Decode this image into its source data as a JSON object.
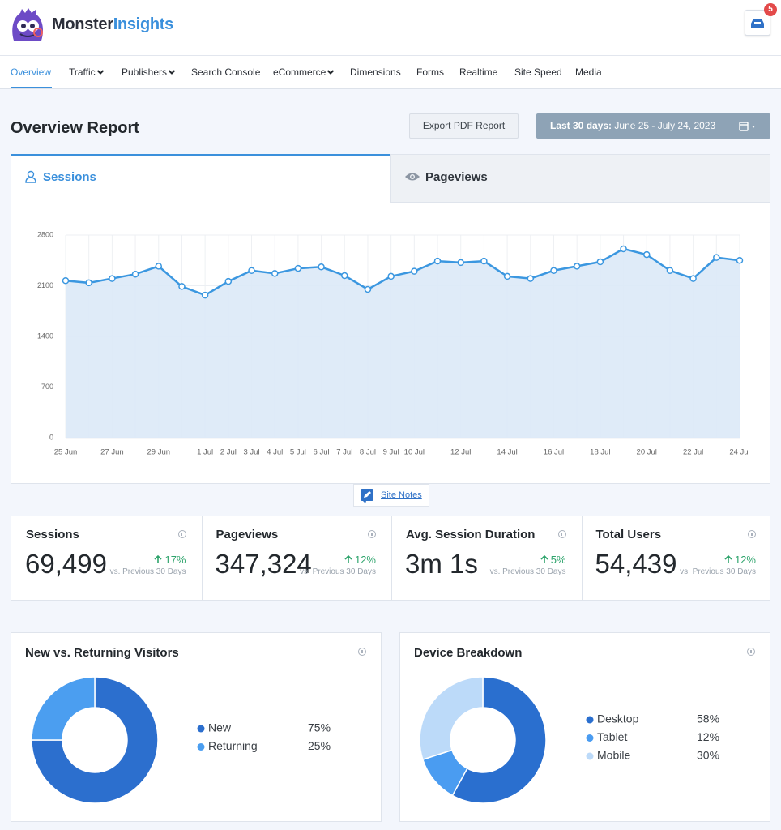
{
  "header": {
    "brand_primary": "Monster",
    "brand_secondary": "Insights",
    "notification_count": "5"
  },
  "nav": {
    "items": [
      "Overview",
      "Traffic",
      "Publishers",
      "Search Console",
      "eCommerce",
      "Dimensions",
      "Forms",
      "Realtime",
      "Site Speed",
      "Media"
    ]
  },
  "report": {
    "title": "Overview Report",
    "export_button": "Export PDF Report",
    "date_range_label": "Last 30 days:",
    "date_range": "June 25 - July 24, 2023"
  },
  "tabs": [
    "Sessions",
    "Pageviews"
  ],
  "site_notes": "Site Notes",
  "metrics": [
    {
      "title": "Sessions",
      "value": "69,499",
      "change": "17%",
      "comparison": "vs. Previous 30 Days"
    },
    {
      "title": "Pageviews",
      "value": "347,324",
      "change": "12%",
      "comparison": "vs. Previous 30 Days"
    },
    {
      "title": "Avg. Session Duration",
      "value": "3m 1s",
      "change": "5%",
      "comparison": "vs. Previous 30 Days"
    },
    {
      "title": "Total Users",
      "value": "54,439",
      "change": "12%",
      "comparison": "vs. Previous 30 Days"
    }
  ],
  "chart_data": [
    {
      "type": "line",
      "color": "#3b97e0",
      "categories": [
        "25 Jun",
        null,
        "27 Jun",
        null,
        "29 Jun",
        null,
        "1 Jul",
        "2 Jul",
        "3 Jul",
        "4 Jul",
        "5 Jul",
        "6 Jul",
        "7 Jul",
        "8 Jul",
        "9 Jul",
        "10 Jul",
        null,
        "12 Jul",
        null,
        "14 Jul",
        null,
        "16 Jul",
        null,
        "18 Jul",
        null,
        "20 Jul",
        null,
        "22 Jul",
        null,
        "24 Jul"
      ],
      "values": [
        2170,
        2140,
        2200,
        2260,
        2370,
        2090,
        1970,
        2160,
        2310,
        2270,
        2340,
        2360,
        2240,
        2050,
        2230,
        2300,
        2440,
        2420,
        2440,
        2230,
        2200,
        2310,
        2370,
        2430,
        2610,
        2530,
        2310,
        2200,
        2490,
        2450
      ],
      "ylim": [
        0,
        2800
      ],
      "yticks": [
        0,
        700,
        1400,
        2100,
        2800
      ],
      "grid": true
    },
    {
      "type": "donut",
      "title": "New vs. Returning Visitors",
      "categories": [
        "New",
        "Returning"
      ],
      "values": [
        75,
        25
      ],
      "value_labels": [
        "75%",
        "25%"
      ],
      "colors": [
        "#2c6fce",
        "#4b9ef0"
      ]
    },
    {
      "type": "donut",
      "title": "Device Breakdown",
      "categories": [
        "Desktop",
        "Tablet",
        "Mobile"
      ],
      "values": [
        58,
        12,
        30
      ],
      "value_labels": [
        "58%",
        "12%",
        "30%"
      ],
      "colors": [
        "#2a6fcf",
        "#4a9cf1",
        "#bcdaf9"
      ]
    }
  ]
}
